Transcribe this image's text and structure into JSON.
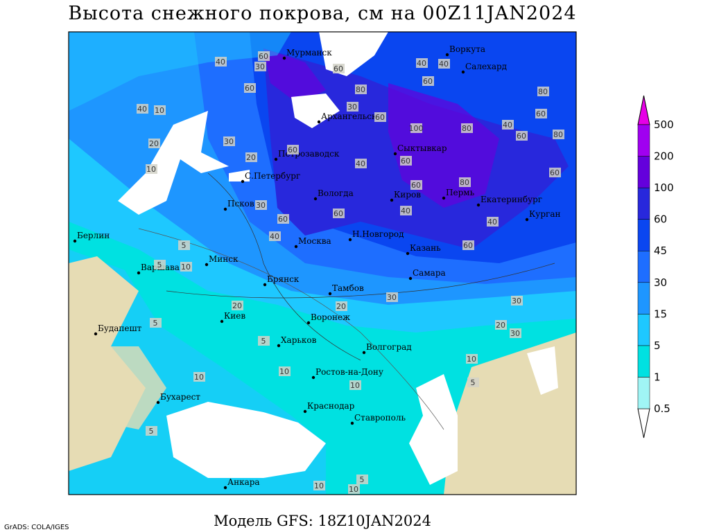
{
  "title": "Высота снежного покрова, см на 00Z11JAN2024",
  "cities": [
    "Мурманск",
    "Воркута",
    "Салехард",
    "Архангельск",
    "Сыктывкар",
    "Петрозаводск",
    "С.Петербург",
    "Вологда",
    "Киров",
    "Пермь",
    "Екатеринбург",
    "Курган",
    "Псков",
    "Н.Новгород",
    "Москва",
    "Казань",
    "Берлин",
    "Минск",
    "Варшава",
    "Самара",
    "Брянск",
    "Тамбов",
    "Киев",
    "Воронеж",
    "Будапешт",
    "Харьков",
    "Волгоград",
    "Ростов-на-Дону",
    "Бухарест",
    "Краснодар",
    "Ставрополь",
    "Анкара"
  ],
  "contour_labels": [
    40,
    60,
    30,
    60,
    40,
    60,
    80,
    60,
    30,
    40,
    10,
    60,
    20,
    40,
    30,
    60,
    100,
    80,
    60,
    80,
    40,
    60,
    80,
    60,
    20,
    60,
    60,
    40,
    60,
    80,
    40,
    60,
    60,
    30,
    40,
    5,
    10,
    20,
    40,
    30,
    20,
    30,
    5,
    20,
    10,
    5,
    10,
    10,
    10,
    5,
    5,
    5,
    10,
    10,
    10,
    5,
    30
  ],
  "legend": {
    "levels": [
      0.5,
      1,
      5,
      15,
      30,
      45,
      60,
      100,
      200,
      500
    ],
    "colors": [
      "#ffffff",
      "#a0f5f5",
      "#00e1e1",
      "#1ec8ff",
      "#1e96ff",
      "#1e6eff",
      "#0a46f0",
      "#2828dc",
      "#6400dc",
      "#a000f0",
      "#e600e6"
    ]
  },
  "footer": {
    "model": "Модель GFS: 18Z10JAN2024",
    "credit": "GrADS: COLA/IGES"
  }
}
